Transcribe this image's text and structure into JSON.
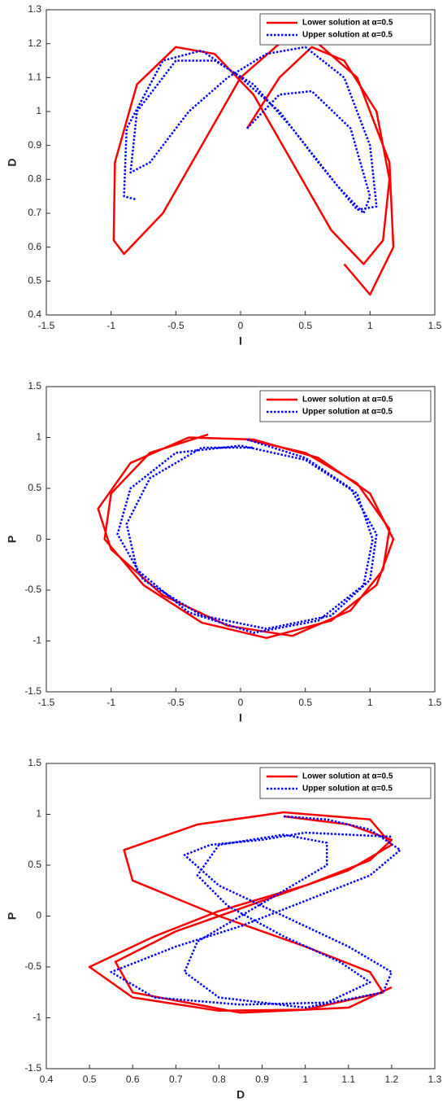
{
  "chart_data": [
    {
      "type": "line",
      "xlabel": "I",
      "ylabel": "D",
      "xlim": [
        -1.5,
        1.5
      ],
      "ylim": [
        0.4,
        1.3
      ],
      "xticks": [
        -1.5,
        -1,
        -0.5,
        0,
        0.5,
        1,
        1.5
      ],
      "yticks": [
        0.4,
        0.5,
        0.6,
        0.7,
        0.8,
        0.9,
        1,
        1.1,
        1.2,
        1.3
      ],
      "legend": "upper right",
      "series": [
        {
          "name": "Lower solution at α=0.5",
          "color": "#ff0000",
          "linestyle": "solid",
          "x": [
            0.05,
            0.3,
            0.55,
            0.8,
            1.05,
            1.15,
            1.1,
            0.95,
            0.7,
            0.4,
            0.1,
            -0.2,
            -0.5,
            -0.8,
            -0.97,
            -0.98,
            -0.9,
            -0.6,
            -0.3,
            0,
            0.3,
            0.6,
            0.9,
            1.15,
            1.18,
            1.0,
            0.8
          ],
          "y": [
            0.95,
            1.1,
            1.19,
            1.15,
            1.0,
            0.8,
            0.62,
            0.55,
            0.65,
            0.85,
            1.05,
            1.17,
            1.19,
            1.08,
            0.85,
            0.62,
            0.58,
            0.7,
            0.9,
            1.1,
            1.2,
            1.2,
            1.1,
            0.85,
            0.6,
            0.46,
            0.55
          ]
        },
        {
          "name": "Upper solution at α=0.5",
          "color": "#0000ff",
          "linestyle": "dotted",
          "x": [
            0.05,
            0.3,
            0.55,
            0.85,
            1.0,
            0.95,
            0.75,
            0.4,
            0.1,
            -0.2,
            -0.5,
            -0.8,
            -0.85,
            -0.7,
            -0.4,
            -0.1,
            0.2,
            0.5,
            0.8,
            1.0,
            1.05,
            0.9,
            0.6,
            0.3,
            0,
            -0.3,
            -0.6,
            -0.88,
            -0.9,
            -0.8
          ],
          "y": [
            0.95,
            1.05,
            1.06,
            0.95,
            0.75,
            0.7,
            0.78,
            0.95,
            1.08,
            1.15,
            1.15,
            1.0,
            0.82,
            0.85,
            1.0,
            1.1,
            1.17,
            1.19,
            1.1,
            0.9,
            0.72,
            0.71,
            0.85,
            1.0,
            1.1,
            1.18,
            1.15,
            0.95,
            0.75,
            0.74
          ]
        }
      ]
    },
    {
      "type": "line",
      "xlabel": "I",
      "ylabel": "P",
      "xlim": [
        -1.5,
        1.5
      ],
      "ylim": [
        -1.5,
        1.5
      ],
      "xticks": [
        -1.5,
        -1,
        -0.5,
        0,
        0.5,
        1,
        1.5
      ],
      "yticks": [
        -1.5,
        -1,
        -0.5,
        0,
        0.5,
        1,
        1.5
      ],
      "legend": "upper right",
      "series": [
        {
          "name": "Lower solution at α=0.5",
          "color": "#ff0000",
          "linestyle": "solid",
          "x": [
            0.05,
            0.5,
            0.9,
            1.15,
            1.1,
            0.85,
            0.4,
            -0.1,
            -0.6,
            -1.0,
            -1.1,
            -0.85,
            -0.4,
            0.1,
            0.6,
            1.0,
            1.18,
            1.05,
            0.7,
            0.2,
            -0.3,
            -0.75,
            -1.05,
            -1.0,
            -0.7,
            -0.25
          ],
          "y": [
            0.98,
            0.85,
            0.55,
            0.1,
            -0.3,
            -0.7,
            -0.95,
            -0.85,
            -0.55,
            -0.1,
            0.3,
            0.75,
            1.0,
            0.98,
            0.8,
            0.45,
            0,
            -0.45,
            -0.8,
            -0.97,
            -0.82,
            -0.45,
            0,
            0.45,
            0.85,
            1.03
          ]
        },
        {
          "name": "Upper solution at α=0.5",
          "color": "#0000ff",
          "linestyle": "dotted",
          "x": [
            0.05,
            0.5,
            0.85,
            1.05,
            1.0,
            0.7,
            0.2,
            -0.3,
            -0.75,
            -0.95,
            -0.85,
            -0.5,
            0,
            0.5,
            0.9,
            1.02,
            0.95,
            0.6,
            0.1,
            -0.4,
            -0.8,
            -0.88,
            -0.7,
            -0.3,
            0.1
          ],
          "y": [
            0.98,
            0.8,
            0.5,
            0.05,
            -0.4,
            -0.75,
            -0.88,
            -0.75,
            -0.4,
            0.05,
            0.5,
            0.85,
            0.92,
            0.78,
            0.45,
            0,
            -0.45,
            -0.8,
            -0.92,
            -0.72,
            -0.3,
            0.15,
            0.6,
            0.9,
            0.9
          ]
        }
      ]
    },
    {
      "type": "line",
      "xlabel": "D",
      "ylabel": "P",
      "xlim": [
        0.4,
        1.3
      ],
      "ylim": [
        -1.5,
        1.5
      ],
      "xticks": [
        0.4,
        0.5,
        0.6,
        0.7,
        0.8,
        0.9,
        1,
        1.1,
        1.2,
        1.3
      ],
      "yticks": [
        -1.5,
        -1,
        -0.5,
        0,
        0.5,
        1,
        1.5
      ],
      "legend": "upper right",
      "series": [
        {
          "name": "Lower solution at α=0.5",
          "color": "#ff0000",
          "linestyle": "solid",
          "x": [
            0.95,
            1.1,
            1.2,
            1.15,
            1.0,
            0.8,
            0.65,
            0.5,
            0.6,
            0.8,
            1.0,
            1.18,
            1.15,
            1.0,
            0.8,
            0.6,
            0.58,
            0.75,
            0.95,
            1.15,
            1.2,
            1.1,
            0.9,
            0.7,
            0.56,
            0.6,
            0.85,
            1.1,
            1.2
          ],
          "y": [
            0.98,
            0.9,
            0.75,
            0.55,
            0.3,
            0.05,
            -0.2,
            -0.5,
            -0.8,
            -0.93,
            -0.92,
            -0.75,
            -0.55,
            -0.3,
            0,
            0.35,
            0.65,
            0.9,
            1.02,
            0.95,
            0.7,
            0.45,
            0.15,
            -0.15,
            -0.45,
            -0.75,
            -0.95,
            -0.9,
            -0.7
          ]
        },
        {
          "name": "Upper solution at α=0.5",
          "color": "#0000ff",
          "linestyle": "dotted",
          "x": [
            0.95,
            1.05,
            1.15,
            1.22,
            1.15,
            1.0,
            0.85,
            0.7,
            0.55,
            0.65,
            0.85,
            1.05,
            1.15,
            1.08,
            0.95,
            0.82,
            0.75,
            0.8,
            0.95,
            1.05,
            1.05,
            0.95,
            0.85,
            0.75,
            0.72,
            0.8,
            1.0,
            1.18,
            1.2,
            1.1,
            0.95,
            0.8,
            0.72,
            0.78,
            0.9,
            1.0,
            1.2
          ],
          "y": [
            0.98,
            0.95,
            0.85,
            0.65,
            0.4,
            0.15,
            -0.1,
            -0.3,
            -0.55,
            -0.8,
            -0.87,
            -0.85,
            -0.65,
            -0.45,
            -0.2,
            0.1,
            0.4,
            0.7,
            0.8,
            0.72,
            0.5,
            0.25,
            0,
            -0.25,
            -0.55,
            -0.8,
            -0.9,
            -0.75,
            -0.55,
            -0.3,
            0,
            0.3,
            0.6,
            0.7,
            0.75,
            0.82,
            0.78
          ]
        }
      ]
    }
  ]
}
